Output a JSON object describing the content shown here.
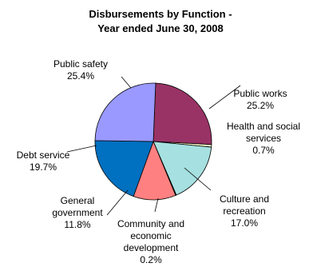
{
  "chart_data": {
    "type": "pie",
    "title_lines": [
      "Disbursements by Function -",
      "Year ended June 30, 2008"
    ],
    "slices": [
      {
        "label_lines": [
          "Public works"
        ],
        "value_text": "25.2%",
        "value": 25.2,
        "color": "#993366"
      },
      {
        "label_lines": [
          "Health and social",
          "services"
        ],
        "value_text": "0.7%",
        "value": 0.7,
        "color": "#ffffcc"
      },
      {
        "label_lines": [
          "Culture and",
          "recreation"
        ],
        "value_text": "17.0%",
        "value": 17.0,
        "color": "#a6e0e0"
      },
      {
        "label_lines": [
          "Community and",
          "economic",
          "development"
        ],
        "value_text": "0.2%",
        "value": 0.2,
        "color": "#660066"
      },
      {
        "label_lines": [
          "General",
          "government"
        ],
        "value_text": "11.8%",
        "value": 11.8,
        "color": "#ff8080"
      },
      {
        "label_lines": [
          "Debt service"
        ],
        "value_text": "19.7%",
        "value": 19.7,
        "color": "#0070c0"
      },
      {
        "label_lines": [
          "Public safety"
        ],
        "value_text": "25.4%",
        "value": 25.4,
        "color": "#9999ff"
      }
    ],
    "legend": "none",
    "label_placement": "outside-with-leader-lines"
  }
}
